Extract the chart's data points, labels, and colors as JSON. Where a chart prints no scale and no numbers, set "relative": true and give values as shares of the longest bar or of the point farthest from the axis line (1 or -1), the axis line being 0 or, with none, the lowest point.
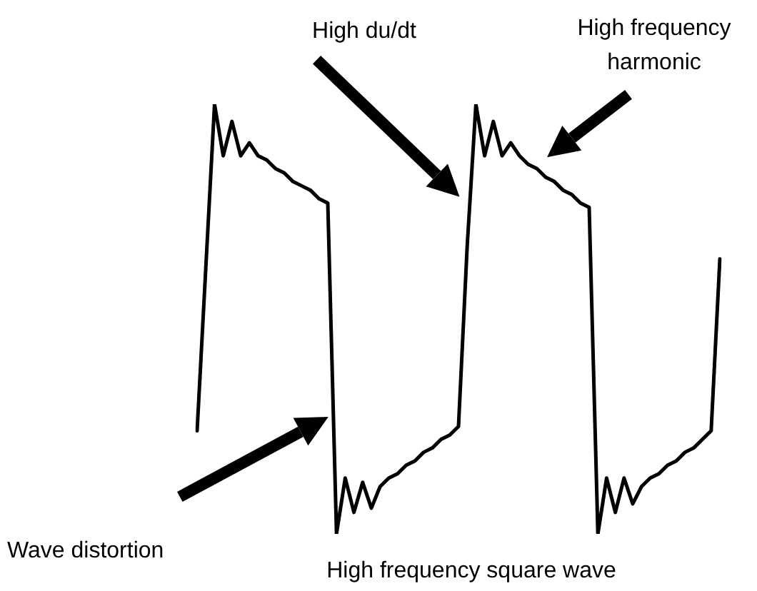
{
  "chart_data": {
    "type": "line",
    "relative": true,
    "legend": false,
    "marker": "none",
    "line_style": "solid",
    "categories": [
      null,
      null,
      null,
      null,
      null,
      null,
      null,
      null,
      null,
      null,
      null,
      null,
      null,
      null,
      null,
      null,
      null,
      null,
      null,
      null,
      null,
      null,
      null,
      null,
      null,
      null,
      null,
      null,
      null,
      null,
      null,
      null,
      null,
      null,
      null,
      null,
      null,
      null,
      null,
      null,
      null,
      null,
      null,
      null,
      null,
      null,
      null,
      null,
      null,
      null,
      null,
      null,
      null,
      null,
      null,
      null,
      null,
      null,
      null,
      null,
      null
    ],
    "series": [
      {
        "color": "#000000",
        "values": [
          0.24,
          0.62,
          1,
          0.88,
          0.96,
          0.88,
          0.91,
          0.88,
          0.87,
          0.85,
          0.84,
          0.82,
          0.81,
          0.8,
          0.78,
          0.77,
          0,
          0.13,
          0.05,
          0.12,
          0.06,
          0.11,
          0.13,
          0.14,
          0.16,
          0.17,
          0.19,
          0.2,
          0.22,
          0.23,
          0.25,
          0.67,
          1,
          0.88,
          0.96,
          0.88,
          0.91,
          0.88,
          0.86,
          0.85,
          0.83,
          0.82,
          0.8,
          0.79,
          0.77,
          0.76,
          0,
          0.13,
          0.05,
          0.13,
          0.07,
          0.11,
          0.13,
          0.14,
          0.16,
          0.17,
          0.19,
          0.2,
          0.22,
          0.24,
          0.64
        ]
      }
    ],
    "annotations": [
      "High du/dt",
      "High frequency\nharmonic",
      "Wave distortion",
      "High frequency square wave"
    ]
  }
}
